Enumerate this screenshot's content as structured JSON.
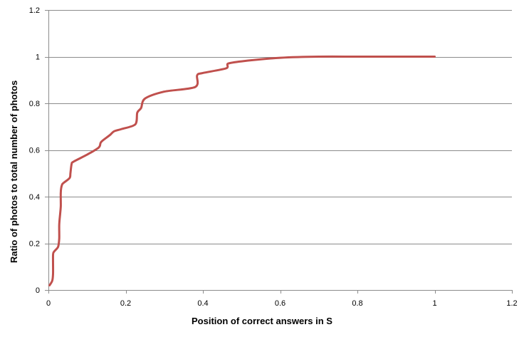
{
  "chart_data": {
    "type": "line",
    "title": "",
    "xlabel": "Position of correct answers in S",
    "ylabel": "Ratio of photos to total number of photos",
    "xlim": [
      0,
      1.2
    ],
    "ylim": [
      0,
      1.2
    ],
    "xticks": [
      "0",
      "0.2",
      "0.4",
      "0.6",
      "0.8",
      "1",
      "1.2"
    ],
    "yticks": [
      "0",
      "0.2",
      "0.4",
      "0.6",
      "0.8",
      "1",
      "1.2"
    ],
    "grid": "horizontal",
    "legend": "none",
    "series": [
      {
        "color": "#c0504d",
        "x": [
          0.003,
          0.01,
          0.012,
          0.012,
          0.015,
          0.025,
          0.028,
          0.028,
          0.03,
          0.032,
          0.032,
          0.035,
          0.04,
          0.055,
          0.057,
          0.06,
          0.065,
          0.1,
          0.13,
          0.135,
          0.14,
          0.16,
          0.17,
          0.19,
          0.225,
          0.23,
          0.24,
          0.25,
          0.3,
          0.38,
          0.385,
          0.4,
          0.46,
          0.465,
          0.5,
          0.6,
          0.7,
          0.8,
          0.9,
          1.0
        ],
        "y": [
          0.02,
          0.04,
          0.07,
          0.15,
          0.165,
          0.185,
          0.22,
          0.28,
          0.32,
          0.36,
          0.42,
          0.45,
          0.46,
          0.48,
          0.5,
          0.54,
          0.55,
          0.58,
          0.61,
          0.63,
          0.64,
          0.665,
          0.68,
          0.69,
          0.71,
          0.76,
          0.78,
          0.82,
          0.85,
          0.87,
          0.92,
          0.93,
          0.95,
          0.97,
          0.98,
          0.995,
          1.0,
          1.0,
          1.0,
          1.0
        ]
      }
    ]
  }
}
